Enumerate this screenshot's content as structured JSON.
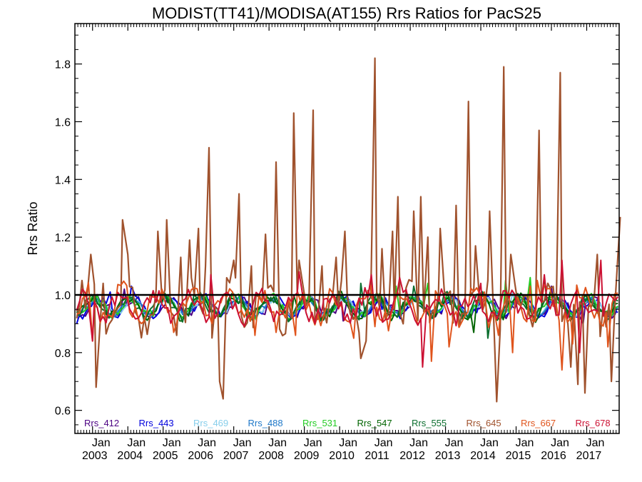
{
  "chart_data": {
    "type": "line",
    "title": "MODIST(TT41)/MODISA(AT155)  Rrs Ratios for PacS25",
    "ylabel": "Rrs Ratio",
    "xlabel": "",
    "ylim": [
      0.52,
      1.94
    ],
    "xlim": [
      2002.5,
      2017.92
    ],
    "yticks": [
      0.6,
      0.8,
      1.0,
      1.2,
      1.4,
      1.6,
      1.8
    ],
    "ytick_labels": [
      "0.6",
      "0.8",
      "1.0",
      "1.2",
      "1.4",
      "1.6",
      "1.8"
    ],
    "xtick_positions": [
      2003,
      2004,
      2005,
      2006,
      2007,
      2008,
      2009,
      2010,
      2011,
      2012,
      2013,
      2014,
      2015,
      2016,
      2017
    ],
    "xtick_top": [
      "Jan",
      "Jan",
      "Jan",
      "Jan",
      "Jan",
      "Jan",
      "Jan",
      "Jan",
      "Jan",
      "Jan",
      "Jan",
      "Jan",
      "Jan",
      "Jan",
      "Jan"
    ],
    "xtick_bottom": [
      "2003",
      "2004",
      "2005",
      "2006",
      "2007",
      "2008",
      "2009",
      "2010",
      "2011",
      "2012",
      "2013",
      "2014",
      "2015",
      "2016",
      "2017"
    ],
    "reference_line": 1.0,
    "grid": false,
    "legend_position": "bottom",
    "series": [
      {
        "name": "Rrs_412",
        "color": "#4b0082",
        "amp": 0.03,
        "noise": 0.015,
        "phase": 0.3,
        "spikes": [
          [
            2003.9,
            1.02
          ],
          [
            2010.1,
            0.91
          ],
          [
            2012.6,
            0.92
          ],
          [
            2016.0,
            1.03
          ],
          [
            2016.9,
            0.9
          ]
        ]
      },
      {
        "name": "Rrs_443",
        "color": "#0000dd",
        "amp": 0.03,
        "noise": 0.015,
        "phase": 0.5,
        "spikes": [
          [
            2002.55,
            0.9
          ],
          [
            2003.5,
            1.01
          ],
          [
            2004.1,
            1.03
          ],
          [
            2009.4,
            0.92
          ],
          [
            2011.2,
            0.95
          ]
        ]
      },
      {
        "name": "Rrs_469",
        "color": "#87ceeb",
        "amp": 0.025,
        "noise": 0.012,
        "phase": 0.7,
        "spikes": [
          [
            2014.9,
            1.01
          ],
          [
            2017.9,
            0.96
          ]
        ]
      },
      {
        "name": "Rrs_488",
        "color": "#1e78c8",
        "amp": 0.025,
        "noise": 0.012,
        "phase": 0.9,
        "spikes": [
          [
            2005.5,
            0.95
          ],
          [
            2013.4,
            0.96
          ]
        ]
      },
      {
        "name": "Rrs_531",
        "color": "#22cc22",
        "amp": 0.03,
        "noise": 0.018,
        "phase": 1.1,
        "spikes": [
          [
            2011.6,
            1.03
          ],
          [
            2012.5,
            1.04
          ],
          [
            2014.7,
            1.05
          ],
          [
            2015.4,
            1.06
          ]
        ]
      },
      {
        "name": "Rrs_547",
        "color": "#006400",
        "amp": 0.035,
        "noise": 0.02,
        "phase": 1.3,
        "spikes": [
          [
            2008.7,
            1.0
          ],
          [
            2013.8,
            0.87
          ],
          [
            2015.8,
            1.06
          ]
        ]
      },
      {
        "name": "Rrs_555",
        "color": "#0b6e2e",
        "amp": 0.035,
        "noise": 0.02,
        "phase": 1.5,
        "spikes": [
          [
            2010.6,
            1.04
          ],
          [
            2012.1,
            1.03
          ],
          [
            2014.2,
            0.85
          ]
        ]
      },
      {
        "name": "Rrs_645",
        "color": "#a0522d",
        "amp": 0.06,
        "noise": 0.06,
        "phase": 2.1,
        "spikes": [
          [
            2002.7,
            1.05
          ],
          [
            2002.95,
            1.14
          ],
          [
            2003.1,
            0.68
          ],
          [
            2003.3,
            1.04
          ],
          [
            2003.85,
            1.26
          ],
          [
            2004.0,
            1.14
          ],
          [
            2004.85,
            1.22
          ],
          [
            2005.1,
            1.26
          ],
          [
            2005.5,
            1.13
          ],
          [
            2005.75,
            1.19
          ],
          [
            2006.0,
            1.23
          ],
          [
            2006.2,
            1.1
          ],
          [
            2006.3,
            1.51
          ],
          [
            2006.6,
            0.7
          ],
          [
            2006.7,
            0.64
          ],
          [
            2007.0,
            1.12
          ],
          [
            2007.15,
            1.35
          ],
          [
            2007.5,
            1.1
          ],
          [
            2007.9,
            1.21
          ],
          [
            2008.2,
            1.46
          ],
          [
            2008.7,
            1.63
          ],
          [
            2008.85,
            1.12
          ],
          [
            2009.25,
            1.64
          ],
          [
            2009.5,
            1.1
          ],
          [
            2009.9,
            1.13
          ],
          [
            2010.15,
            1.22
          ],
          [
            2010.6,
            0.78
          ],
          [
            2010.75,
            0.84
          ],
          [
            2011.0,
            1.82
          ],
          [
            2011.2,
            1.16
          ],
          [
            2011.5,
            1.22
          ],
          [
            2011.65,
            1.34
          ],
          [
            2011.8,
            0.9
          ],
          [
            2012.1,
            1.29
          ],
          [
            2012.3,
            1.34
          ],
          [
            2012.5,
            1.2
          ],
          [
            2012.85,
            1.23
          ],
          [
            2013.3,
            1.31
          ],
          [
            2013.65,
            1.67
          ],
          [
            2013.85,
            1.17
          ],
          [
            2014.2,
            1.05
          ],
          [
            2014.25,
            1.29
          ],
          [
            2014.45,
            0.63
          ],
          [
            2014.65,
            1.79
          ],
          [
            2014.85,
            1.14
          ],
          [
            2015.3,
            1.0
          ],
          [
            2015.65,
            1.57
          ],
          [
            2015.9,
            1.04
          ],
          [
            2016.25,
            1.77
          ],
          [
            2016.55,
            0.75
          ],
          [
            2016.75,
            0.69
          ],
          [
            2016.95,
            0.66
          ],
          [
            2017.3,
            1.14
          ],
          [
            2017.7,
            0.7
          ],
          [
            2017.85,
            0.65
          ],
          [
            2017.95,
            1.27
          ]
        ]
      },
      {
        "name": "Rrs_667",
        "color": "#e0541c",
        "amp": 0.05,
        "noise": 0.04,
        "phase": 2.6,
        "spikes": [
          [
            2003.0,
            0.84
          ],
          [
            2005.3,
            0.87
          ],
          [
            2007.6,
            0.86
          ],
          [
            2008.2,
            0.87
          ],
          [
            2008.75,
            0.86
          ],
          [
            2010.4,
            0.85
          ],
          [
            2011.0,
            0.89
          ],
          [
            2012.6,
            0.77
          ],
          [
            2013.1,
            0.82
          ],
          [
            2014.1,
            1.01
          ],
          [
            2014.5,
            0.86
          ],
          [
            2014.9,
            0.8
          ],
          [
            2015.4,
            1.03
          ],
          [
            2015.6,
            1.05
          ],
          [
            2016.3,
            0.74
          ],
          [
            2016.6,
            0.83
          ],
          [
            2017.6,
            0.82
          ]
        ]
      },
      {
        "name": "Rrs_678",
        "color": "#cc1133",
        "amp": 0.04,
        "noise": 0.03,
        "phase": 3.0,
        "spikes": [
          [
            2003.0,
            0.84
          ],
          [
            2006.35,
            1.07
          ],
          [
            2008.85,
            1.08
          ],
          [
            2010.9,
            1.07
          ],
          [
            2011.7,
            1.06
          ],
          [
            2012.35,
            0.75
          ],
          [
            2014.0,
            1.04
          ],
          [
            2015.8,
            1.07
          ],
          [
            2016.3,
            1.12
          ],
          [
            2016.8,
            0.8
          ],
          [
            2017.4,
            1.12
          ],
          [
            2017.8,
            0.98
          ]
        ]
      }
    ]
  }
}
